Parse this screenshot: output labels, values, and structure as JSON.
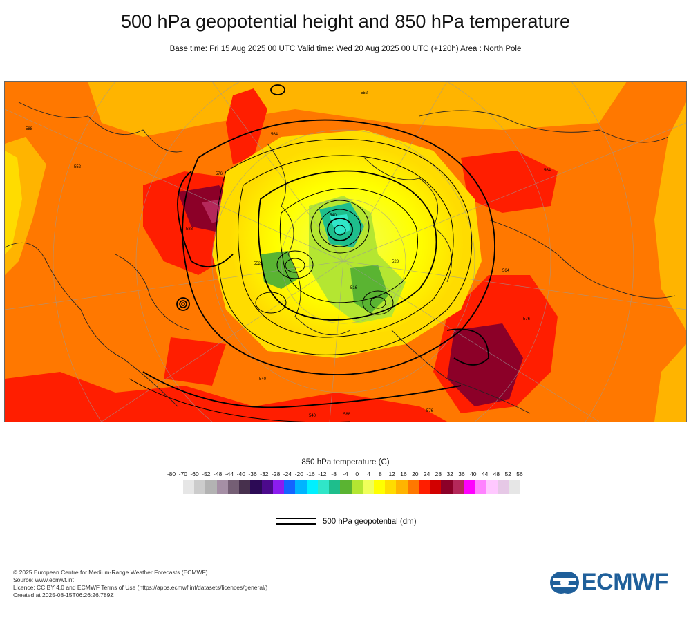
{
  "header": {
    "title": "500 hPa geopotential height and 850 hPa temperature",
    "subtitle": "Base time: Fri 15 Aug 2025 00 UTC Valid time: Wed 20 Aug 2025 00 UTC (+120h) Area : North Pole"
  },
  "legend": {
    "temperature_title": "850 hPa temperature (C)",
    "ticks": [
      "-80",
      "-70",
      "-60",
      "-52",
      "-48",
      "-44",
      "-40",
      "-36",
      "-32",
      "-28",
      "-24",
      "-20",
      "-16",
      "-12",
      "-8",
      "-4",
      "0",
      "4",
      "8",
      "12",
      "16",
      "20",
      "24",
      "28",
      "32",
      "36",
      "40",
      "44",
      "48",
      "52",
      "56"
    ],
    "colors": [
      "#e6e6e6",
      "#cccccc",
      "#b3b3b3",
      "#a58fa5",
      "#755f75",
      "#47304d",
      "#2c0a55",
      "#4c0a8c",
      "#8c1cf0",
      "#1464ff",
      "#00b4ff",
      "#00f0ff",
      "#30e6c8",
      "#1ebe8c",
      "#5ab432",
      "#b4e632",
      "#f0ff5a",
      "#ffff00",
      "#ffdc00",
      "#ffb400",
      "#ff7800",
      "#ff1e00",
      "#d20000",
      "#8c0028",
      "#b4285a",
      "#ff00ff",
      "#ff82ff",
      "#ffc8ff",
      "#e6c8e6",
      "#e6e6e6"
    ],
    "contour_label": "500 hPa geopotential (dm)"
  },
  "footer": {
    "copyright": "© 2025 European Centre for Medium-Range Weather Forecasts (ECMWF)",
    "source": "Source: www.ecmwf.int",
    "licence": "Licence: CC BY 4.0 and ECMWF Terms of Use (https://apps.ecmwf.int/datasets/licences/general/)",
    "created": "Created at 2025-08-15T06:26:26.789Z",
    "logo_text": "ECMWF"
  },
  "contour_labels": [
    "564",
    "576",
    "588",
    "552",
    "540",
    "528",
    "516",
    "564",
    "576",
    "588",
    "552",
    "540",
    "588",
    "576",
    "564",
    "552",
    "540"
  ]
}
